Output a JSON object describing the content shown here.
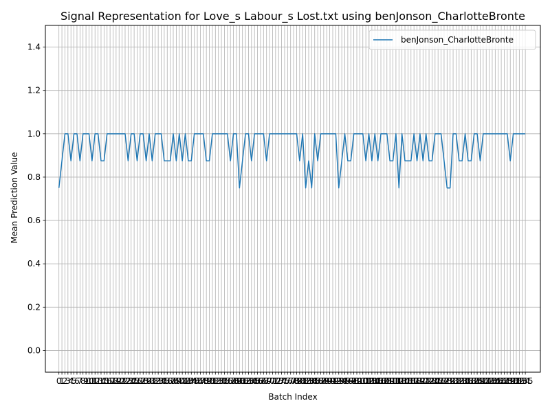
{
  "chart_data": {
    "type": "line",
    "title": "Signal Representation for Love_s Labour_s Lost.txt using benJonson_CharlotteBronte",
    "xlabel": "Batch Index",
    "ylabel": "Mean Prediction Value",
    "ylim": [
      -0.1,
      1.5
    ],
    "yticks": [
      "0.0",
      "0.2",
      "0.4",
      "0.6",
      "0.8",
      "1.0",
      "1.2",
      "1.4"
    ],
    "xlim": [
      -4.5,
      160
    ],
    "x_range": [
      0,
      155
    ],
    "xticks_labels": [
      "0",
      "1",
      "2",
      "3",
      "4",
      "5",
      "6",
      "7",
      "8",
      "9",
      "10",
      "11",
      "12",
      "13",
      "14",
      "15",
      "16",
      "17",
      "18",
      "19",
      "20",
      "21",
      "22",
      "23",
      "24",
      "25",
      "26",
      "27",
      "28",
      "29",
      "30",
      "31",
      "32",
      "33",
      "34",
      "35",
      "36",
      "37",
      "38",
      "39",
      "40",
      "41",
      "42",
      "43",
      "44",
      "45",
      "46",
      "47",
      "48",
      "49",
      "50",
      "51",
      "52",
      "53",
      "54",
      "55",
      "56",
      "57",
      "58",
      "59",
      "60",
      "61",
      "62",
      "63",
      "64",
      "65",
      "66",
      "67",
      "68",
      "69",
      "70",
      "71",
      "72",
      "73",
      "74",
      "75",
      "76",
      "77",
      "78",
      "79",
      "80",
      "81",
      "82",
      "83",
      "84",
      "85",
      "86",
      "87",
      "88",
      "89",
      "90",
      "91",
      "92",
      "93",
      "94",
      "95",
      "96",
      "97",
      "98",
      "99",
      "100",
      "101",
      "102",
      "103",
      "104",
      "105",
      "106",
      "107",
      "108",
      "109",
      "110",
      "111",
      "112",
      "113",
      "114",
      "115",
      "116",
      "117",
      "118",
      "119",
      "120",
      "121",
      "122",
      "123",
      "124",
      "125",
      "126",
      "127",
      "128",
      "129",
      "130",
      "131",
      "132",
      "133",
      "134",
      "135",
      "136",
      "137",
      "138",
      "139",
      "140",
      "141",
      "142",
      "143",
      "144",
      "145",
      "146",
      "147",
      "148",
      "149",
      "150",
      "151",
      "152",
      "153",
      "154",
      "155"
    ],
    "grid": true,
    "legend_position": "top-right",
    "series": [
      {
        "name": "benJonson_CharlotteBronte",
        "color": "#1f77b4",
        "values": [
          0.75,
          0.875,
          1.0,
          1.0,
          0.875,
          1.0,
          1.0,
          0.875,
          1.0,
          1.0,
          1.0,
          0.875,
          1.0,
          1.0,
          0.875,
          0.875,
          1.0,
          1.0,
          1.0,
          1.0,
          1.0,
          1.0,
          1.0,
          0.875,
          1.0,
          1.0,
          0.875,
          1.0,
          1.0,
          0.875,
          1.0,
          0.875,
          1.0,
          1.0,
          1.0,
          0.875,
          0.875,
          0.875,
          1.0,
          0.875,
          1.0,
          0.875,
          1.0,
          0.875,
          0.875,
          1.0,
          1.0,
          1.0,
          1.0,
          0.875,
          0.875,
          1.0,
          1.0,
          1.0,
          1.0,
          1.0,
          1.0,
          0.875,
          1.0,
          1.0,
          0.75,
          0.875,
          1.0,
          1.0,
          0.875,
          1.0,
          1.0,
          1.0,
          1.0,
          0.875,
          1.0,
          1.0,
          1.0,
          1.0,
          1.0,
          1.0,
          1.0,
          1.0,
          1.0,
          1.0,
          0.875,
          1.0,
          0.75,
          0.875,
          0.75,
          1.0,
          0.875,
          1.0,
          1.0,
          1.0,
          1.0,
          1.0,
          1.0,
          0.75,
          0.875,
          1.0,
          0.875,
          0.875,
          1.0,
          1.0,
          1.0,
          1.0,
          0.875,
          1.0,
          0.875,
          1.0,
          0.875,
          1.0,
          1.0,
          1.0,
          0.875,
          0.875,
          1.0,
          0.75,
          1.0,
          0.875,
          0.875,
          0.875,
          1.0,
          0.875,
          1.0,
          0.875,
          1.0,
          0.875,
          0.875,
          1.0,
          1.0,
          1.0,
          0.875,
          0.75,
          0.75,
          1.0,
          1.0,
          0.875,
          0.875,
          1.0,
          0.875,
          0.875,
          1.0,
          1.0,
          0.875,
          1.0,
          1.0,
          1.0,
          1.0,
          1.0,
          1.0,
          1.0,
          1.0,
          1.0,
          0.875,
          1.0,
          1.0,
          1.0,
          1.0,
          1.0
        ]
      }
    ]
  }
}
